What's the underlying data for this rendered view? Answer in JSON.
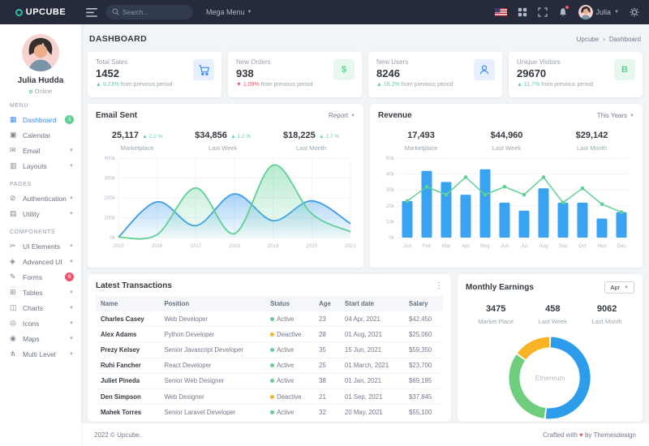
{
  "colors": {
    "topbar_bg": "#252b3b",
    "primary": "#3d8ef8",
    "success": "#5fd195",
    "danger": "#f1556c",
    "warning": "#f8b425",
    "bar_blue": "#38a3f1",
    "area_blue": "#3d9ced",
    "area_green": "#5fd195"
  },
  "topbar": {
    "logo_text": "UPCUBE",
    "search_placeholder": "Search...",
    "mega_menu_label": "Mega Menu",
    "user_label": "Julia"
  },
  "sidebar": {
    "user": {
      "name": "Julia Hudda",
      "status": "Online"
    },
    "sections": [
      {
        "label": "MENU",
        "items": [
          {
            "label": "Dashboard",
            "glyph": "▦",
            "active": true,
            "badge": "3",
            "badge_color": "#5fd195"
          },
          {
            "label": "Calendar",
            "glyph": "▣"
          },
          {
            "label": "Email",
            "glyph": "✉",
            "chevron": true
          },
          {
            "label": "Layouts",
            "glyph": "▥",
            "chevron": true
          }
        ]
      },
      {
        "label": "PAGES",
        "items": [
          {
            "label": "Authentication",
            "glyph": "⊘",
            "chevron": true
          },
          {
            "label": "Utility",
            "glyph": "▤",
            "chevron": true
          }
        ]
      },
      {
        "label": "COMPONENTS",
        "items": [
          {
            "label": "UI Elements",
            "glyph": "✂",
            "chevron": true
          },
          {
            "label": "Advanced UI",
            "glyph": "◈",
            "chevron": true
          },
          {
            "label": "Forms",
            "glyph": "✎",
            "badge": "6",
            "badge_color": "#f1556c"
          },
          {
            "label": "Tables",
            "glyph": "⊞",
            "chevron": true
          },
          {
            "label": "Charts",
            "glyph": "◫",
            "chevron": true
          },
          {
            "label": "Icons",
            "glyph": "◎",
            "chevron": true
          },
          {
            "label": "Maps",
            "glyph": "◉",
            "chevron": true
          },
          {
            "label": "Multi Level",
            "glyph": "⋔",
            "chevron": true
          }
        ]
      }
    ]
  },
  "page": {
    "title": "DASHBOARD",
    "breadcrumb": [
      "Upcube",
      "Dashboard"
    ]
  },
  "stat_cards": [
    {
      "label": "Total Sales",
      "value": "1452",
      "delta": "9.23%",
      "direction": "up",
      "delta_color": "#5fd195",
      "note": "from previous period",
      "icon": "cart-icon",
      "icon_color": "#3d8ef8",
      "icon_bg": "#e6f0fe"
    },
    {
      "label": "New Orders",
      "value": "938",
      "delta": "1.09%",
      "direction": "down",
      "delta_color": "#f1556c",
      "note": "from previous period",
      "icon": "dollar-icon",
      "icon_color": "#5fd195",
      "icon_bg": "#e7f8ef"
    },
    {
      "label": "New Users",
      "value": "8246",
      "delta": "16.2%",
      "direction": "up",
      "delta_color": "#5fd195",
      "note": "from previous period",
      "icon": "user-icon",
      "icon_color": "#3d8ef8",
      "icon_bg": "#e6f0fe"
    },
    {
      "label": "Unique Visitors",
      "value": "29670",
      "delta": "11.7%",
      "direction": "up",
      "delta_color": "#5fd195",
      "note": "from previous period",
      "icon": "bitcoin-icon",
      "icon_color": "#5fd195",
      "icon_bg": "#e7f8ef"
    }
  ],
  "email_card": {
    "title": "Email Sent",
    "menu_label": "Report",
    "stats": [
      {
        "value": "25,117",
        "delta": "2.2 %",
        "label": "Marketplace"
      },
      {
        "value": "$34,856",
        "delta": "1.2 %",
        "label": "Last Week"
      },
      {
        "value": "$18,225",
        "delta": "1.7 %",
        "label": "Last Month"
      }
    ]
  },
  "revenue_card": {
    "title": "Revenue",
    "menu_label": "This Years",
    "stats": [
      {
        "value": "17,493",
        "label": "Marketplace"
      },
      {
        "value": "$44,960",
        "label": "Last Week"
      },
      {
        "value": "$29,142",
        "label": "Last Month"
      }
    ]
  },
  "transactions": {
    "title": "Latest Transactions",
    "columns": [
      "Name",
      "Position",
      "Status",
      "Age",
      "Start date",
      "Salary"
    ],
    "rows": [
      {
        "name": "Charles Casey",
        "position": "Web Developer",
        "status": "Active",
        "age": "23",
        "start": "04 Apr, 2021",
        "salary": "$42,450"
      },
      {
        "name": "Alex Adams",
        "position": "Python Developer",
        "status": "Deactive",
        "age": "28",
        "start": "01 Aug, 2021",
        "salary": "$25,060"
      },
      {
        "name": "Prezy Kelsey",
        "position": "Senior Javascript Developer",
        "status": "Active",
        "age": "35",
        "start": "15 Jun, 2021",
        "salary": "$59,350"
      },
      {
        "name": "Ruhi Fancher",
        "position": "React Developer",
        "status": "Active",
        "age": "25",
        "start": "01 March, 2021",
        "salary": "$23,700"
      },
      {
        "name": "Juliet Pineda",
        "position": "Senior Web Designer",
        "status": "Active",
        "age": "38",
        "start": "01 Jan, 2021",
        "salary": "$69,185"
      },
      {
        "name": "Den Simpson",
        "position": "Web Designer",
        "status": "Deactive",
        "age": "21",
        "start": "01 Sep, 2021",
        "salary": "$37,845"
      },
      {
        "name": "Mahek Torres",
        "position": "Senior Laravel Developer",
        "status": "Active",
        "age": "32",
        "start": "20 May, 2021",
        "salary": "$55,100"
      }
    ],
    "status_colors": {
      "Active": "#5fd195",
      "Deactive": "#f8b425"
    }
  },
  "earnings_card": {
    "title": "Monthly Earnings",
    "select_value": "Apr",
    "stats": [
      {
        "value": "3475",
        "label": "Market Place"
      },
      {
        "value": "458",
        "label": "Last Week"
      },
      {
        "value": "9062",
        "label": "Last Month"
      }
    ]
  },
  "footer": {
    "copyright": "2022 © Upcube.",
    "credit_prefix": "Crafted with",
    "heart": "♥",
    "credit_suffix": "by Themesdesign"
  },
  "chart_data": [
    {
      "id": "email_sent",
      "type": "area",
      "title": "Email Sent",
      "x": [
        "2015",
        "2016",
        "2017",
        "2018",
        "2019",
        "2020",
        "2021"
      ],
      "series": [
        {
          "name": "series-1",
          "color": "#3d9ced",
          "values": [
            2,
            180,
            60,
            220,
            85,
            185,
            70
          ]
        },
        {
          "name": "series-2",
          "color": "#5fd195",
          "values": [
            2,
            15,
            250,
            20,
            365,
            120,
            30
          ]
        }
      ],
      "ylim": [
        0,
        400
      ],
      "yticks": [
        "0k",
        "100k",
        "200k",
        "300k",
        "400k"
      ],
      "grid": true,
      "legend": "none"
    },
    {
      "id": "revenue",
      "type": "bar",
      "title": "Revenue",
      "categories": [
        "Jan",
        "Feb",
        "Mar",
        "Apr",
        "May",
        "Jun",
        "Jul",
        "Aug",
        "Sep",
        "Oct",
        "Nov",
        "Dec"
      ],
      "series": [
        {
          "name": "bars",
          "type": "bar",
          "color": "#38a3f1",
          "values": [
            23,
            42,
            35,
            27,
            43,
            22,
            17,
            31,
            22,
            22,
            12,
            16
          ]
        },
        {
          "name": "line",
          "type": "line",
          "color": "#5fd195",
          "values": [
            23,
            32,
            27,
            38,
            27,
            32,
            27,
            38,
            22,
            31,
            21,
            16
          ]
        }
      ],
      "ylim": [
        0,
        50
      ],
      "yticks": [
        "0k",
        "10k",
        "20k",
        "30k",
        "40k",
        "50k"
      ],
      "grid": true,
      "legend": "none"
    },
    {
      "id": "monthly_earnings",
      "type": "pie",
      "center_label": "Ethereum",
      "segments": [
        {
          "name": "segment-1",
          "value": 52,
          "color": "#2d9ceb"
        },
        {
          "name": "segment-2",
          "value": 33,
          "color": "#6fce7e"
        },
        {
          "name": "segment-3",
          "value": 15,
          "color": "#f8b425"
        }
      ]
    }
  ]
}
